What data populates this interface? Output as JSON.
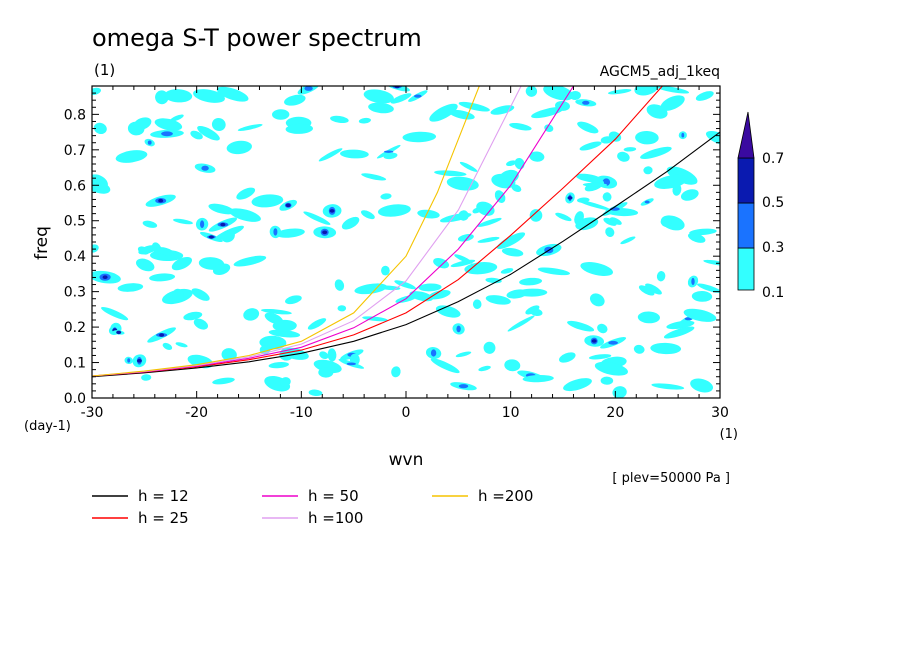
{
  "chart_data": {
    "type": "line",
    "title": "omega S-T power spectrum",
    "unit_label": "(1)",
    "model_label": "AGCM5_adj_1keq",
    "xlabel": "wvn",
    "ylabel": "freq",
    "x_unit": "(1)",
    "y_unit": "(day-1)",
    "xlim": [
      -30,
      30
    ],
    "ylim": [
      0,
      0.88
    ],
    "x_ticks": [
      -30,
      -20,
      -10,
      0,
      10,
      20,
      30
    ],
    "x_tick_labels": [
      "-30",
      "-20",
      "-10",
      "0",
      "10",
      "20",
      "30"
    ],
    "y_ticks": [
      0.0,
      0.1,
      0.2,
      0.3,
      0.4,
      0.5,
      0.6,
      0.7,
      0.8
    ],
    "y_tick_labels": [
      "0.0",
      "0.1",
      "0.2",
      "0.3",
      "0.4",
      "0.5",
      "0.6",
      "0.7",
      "0.8"
    ],
    "annotation": "[ plev=50000 Pa ]",
    "colorbar": {
      "levels": [
        "0.1",
        "0.3",
        "0.5",
        "0.7"
      ],
      "colors": [
        "#33ffff",
        "#1a73ff",
        "#0a1ab0",
        "#3a0aa0"
      ]
    },
    "series": [
      {
        "name": "h = 12",
        "color": "#000000",
        "x": [
          -30,
          -25,
          -20,
          -15,
          -10,
          -5,
          0,
          5,
          10,
          15,
          20,
          25,
          30
        ],
        "y": [
          0.06,
          0.071,
          0.085,
          0.102,
          0.126,
          0.16,
          0.207,
          0.272,
          0.349,
          0.442,
          0.54,
          0.64,
          0.75
        ]
      },
      {
        "name": "h = 25",
        "color": "#ff0000",
        "x": [
          -30,
          -25,
          -20,
          -15,
          -10,
          -5,
          0,
          5,
          10,
          15,
          20,
          24.5
        ],
        "y": [
          0.062,
          0.073,
          0.088,
          0.108,
          0.135,
          0.178,
          0.24,
          0.334,
          0.459,
          0.592,
          0.73,
          0.88
        ]
      },
      {
        "name": "h = 50",
        "color": "#ee00cc",
        "x": [
          -30,
          -25,
          -20,
          -15,
          -10,
          -5,
          0,
          5,
          10,
          16
        ],
        "y": [
          0.062,
          0.074,
          0.09,
          0.112,
          0.143,
          0.198,
          0.28,
          0.42,
          0.6,
          0.88
        ]
      },
      {
        "name": "h =100",
        "color": "#e0a0f0",
        "x": [
          -30,
          -25,
          -20,
          -15,
          -10,
          -5,
          0,
          5,
          11
        ],
        "y": [
          0.062,
          0.075,
          0.092,
          0.116,
          0.152,
          0.218,
          0.33,
          0.53,
          0.88
        ]
      },
      {
        "name": "h =200",
        "color": "#f5c400",
        "x": [
          -30,
          -25,
          -20,
          -15,
          -10,
          -5,
          0,
          3,
          7
        ],
        "y": [
          0.062,
          0.076,
          0.094,
          0.12,
          0.16,
          0.24,
          0.4,
          0.58,
          0.88
        ]
      }
    ]
  }
}
